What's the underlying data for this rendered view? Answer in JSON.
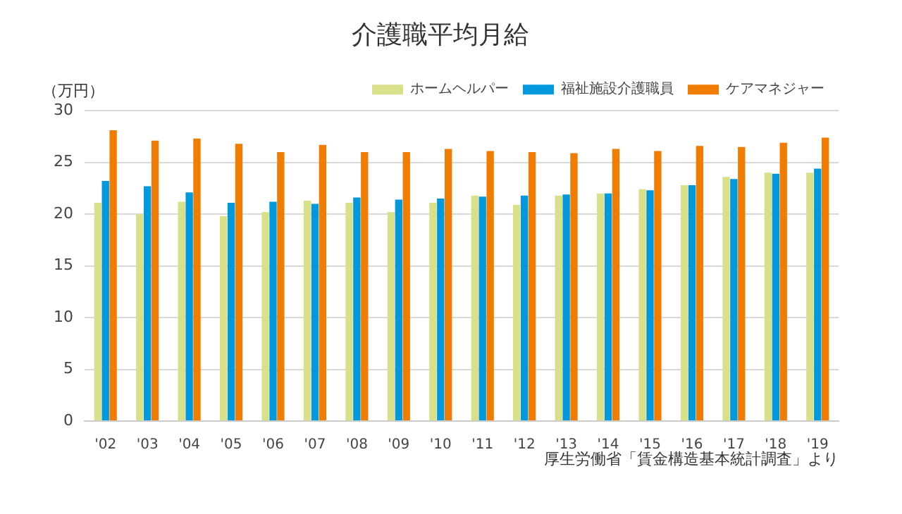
{
  "chart_data": {
    "type": "bar",
    "title": "介護職平均月給",
    "ylabel": "（万円）",
    "categories": [
      "'02",
      "'03",
      "'04",
      "'05",
      "'06",
      "'07",
      "'08",
      "'09",
      "'10",
      "'11",
      "'12",
      "'13",
      "'14",
      "'15",
      "'16",
      "'17",
      "'18",
      "'19"
    ],
    "series": [
      {
        "name": "ホームヘルパー",
        "color": "#d9e08a",
        "values": [
          21.1,
          20.0,
          21.2,
          19.8,
          20.2,
          21.3,
          21.1,
          20.2,
          21.1,
          21.8,
          20.9,
          21.8,
          22.0,
          22.4,
          22.8,
          23.6,
          24.0,
          24.0
        ]
      },
      {
        "name": "福祉施設介護職員",
        "color": "#0099dd",
        "values": [
          23.2,
          22.7,
          22.1,
          21.1,
          21.2,
          21.0,
          21.6,
          21.4,
          21.5,
          21.7,
          21.8,
          21.9,
          22.0,
          22.3,
          22.8,
          23.4,
          23.9,
          24.4
        ]
      },
      {
        "name": "ケアマネジャー",
        "color": "#f07c00",
        "values": [
          28.1,
          27.1,
          27.3,
          26.8,
          26.0,
          26.7,
          26.0,
          26.0,
          26.3,
          26.1,
          26.0,
          25.9,
          26.3,
          26.1,
          26.6,
          26.5,
          26.9,
          27.4
        ]
      }
    ],
    "ylim": [
      0,
      30
    ],
    "yticks": [
      0,
      5,
      10,
      15,
      20,
      25,
      30
    ],
    "grid": "y",
    "legend": "top right",
    "annotations": [
      "厚生労働省「賃金構造基本統計調査」より"
    ]
  }
}
